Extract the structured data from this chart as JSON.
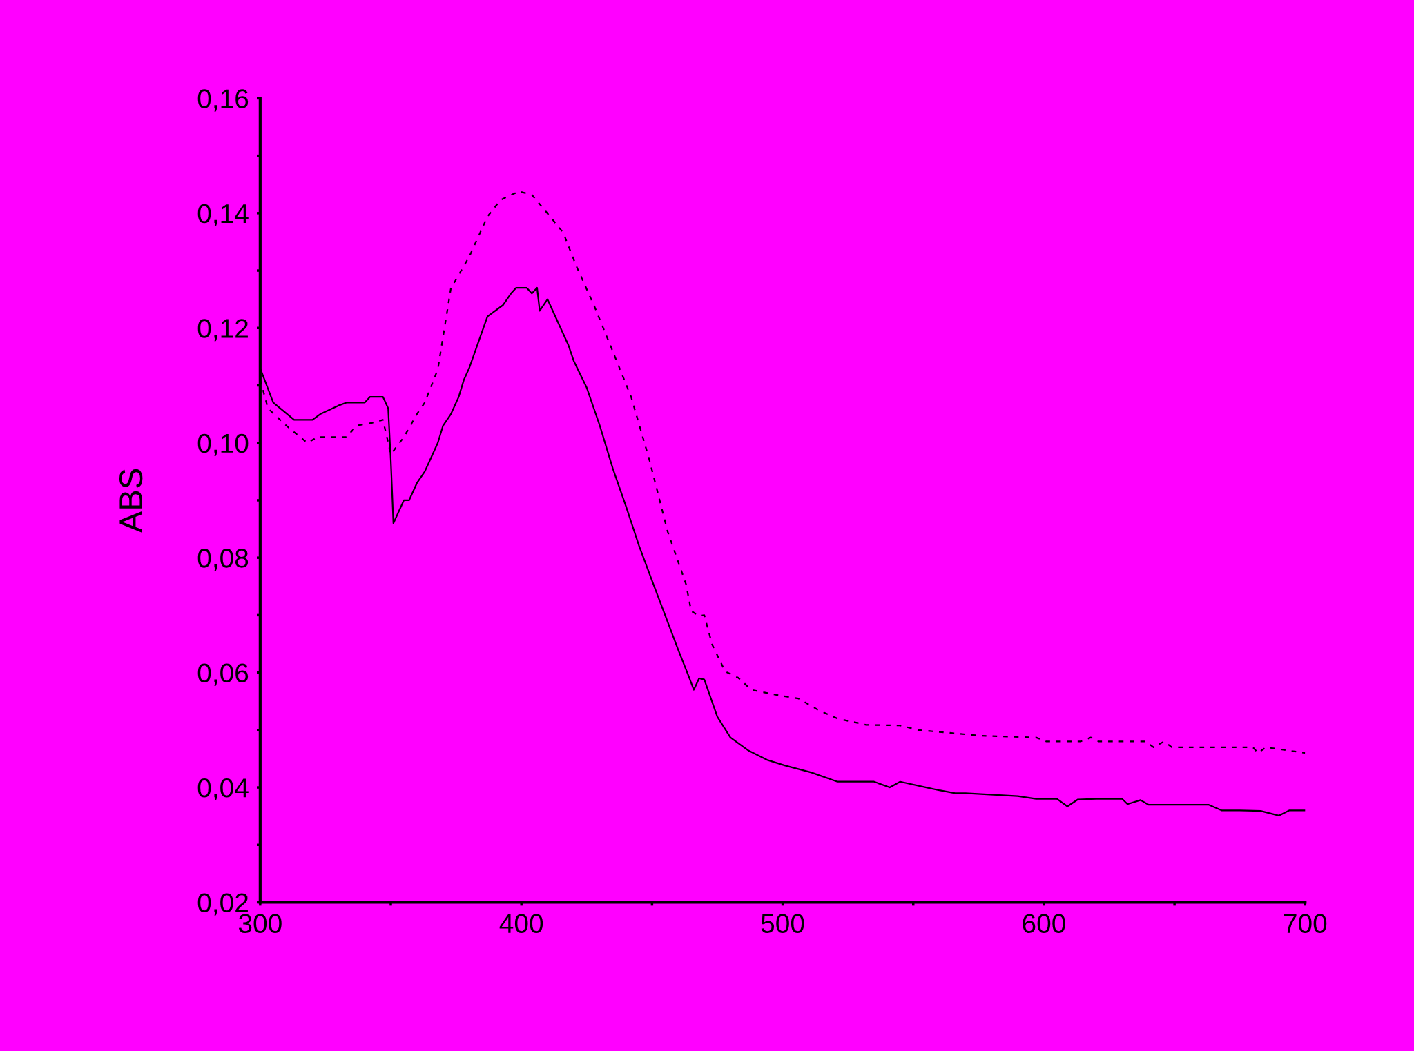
{
  "chart_data": {
    "type": "line",
    "ylabel": "ABS",
    "xlim": [
      300,
      700
    ],
    "ylim": [
      0.02,
      0.16
    ],
    "xticks": [
      300,
      {
        "value": 350,
        "label": null
      },
      400,
      {
        "value": 450,
        "label": null
      },
      500,
      {
        "value": 550,
        "label": null
      },
      600,
      {
        "value": 650,
        "label": null
      },
      700
    ],
    "yticks": [
      {
        "value": 0.02,
        "label": "0,02"
      },
      {
        "value": 0.03,
        "label": null
      },
      {
        "value": 0.04,
        "label": "0,04"
      },
      {
        "value": 0.05,
        "label": null
      },
      {
        "value": 0.06,
        "label": "0,06"
      },
      {
        "value": 0.07,
        "label": null
      },
      {
        "value": 0.08,
        "label": "0,08"
      },
      {
        "value": 0.09,
        "label": null
      },
      {
        "value": 0.1,
        "label": "0,10"
      },
      {
        "value": 0.11,
        "label": null
      },
      {
        "value": 0.12,
        "label": "0,12"
      },
      {
        "value": 0.13,
        "label": null
      },
      {
        "value": 0.14,
        "label": "0,14"
      },
      {
        "value": 0.15,
        "label": null
      },
      {
        "value": 0.16,
        "label": "0,16"
      }
    ],
    "grid": false,
    "marker": "none",
    "series": [
      {
        "color": "#000000",
        "line_style": "solid",
        "x": [
          300,
          305,
          313,
          320,
          323,
          330,
          333,
          340,
          342,
          347,
          349,
          350,
          351,
          355,
          357,
          360,
          363,
          365,
          368,
          370,
          373,
          376,
          378,
          380,
          387,
          393,
          396,
          398,
          402,
          404,
          406,
          407,
          410,
          414,
          418,
          420,
          425,
          430,
          435,
          440,
          445,
          450,
          456,
          460,
          464,
          466,
          468,
          470,
          475,
          480,
          487,
          494,
          501,
          511,
          521,
          535,
          541,
          545,
          555,
          560,
          566,
          570,
          590,
          597,
          605,
          609,
          613,
          620,
          630,
          632,
          637,
          640,
          649,
          663,
          668,
          675,
          683,
          690,
          694,
          700
        ],
        "values": [
          0.113,
          0.107,
          0.104,
          0.104,
          0.105,
          0.1065,
          0.107,
          0.107,
          0.108,
          0.108,
          0.106,
          0.097,
          0.086,
          0.09,
          0.09,
          0.093,
          0.095,
          0.097,
          0.1,
          0.103,
          0.105,
          0.108,
          0.111,
          0.113,
          0.122,
          0.124,
          0.126,
          0.127,
          0.127,
          0.126,
          0.127,
          0.123,
          0.125,
          0.121,
          0.117,
          0.1143,
          0.1096,
          0.103,
          0.0955,
          0.089,
          0.0821,
          0.076,
          0.0688,
          0.064,
          0.0594,
          0.057,
          0.059,
          0.0588,
          0.0523,
          0.0487,
          0.0464,
          0.0448,
          0.0438,
          0.0426,
          0.041,
          0.041,
          0.04,
          0.041,
          0.04,
          0.0395,
          0.039,
          0.039,
          0.0385,
          0.038,
          0.038,
          0.0367,
          0.0379,
          0.038,
          0.038,
          0.0371,
          0.0378,
          0.037,
          0.037,
          0.037,
          0.036,
          0.036,
          0.0359,
          0.0351,
          0.036,
          0.036
        ]
      },
      {
        "color": "#000000",
        "line_style": "dashed",
        "x": [
          300,
          303,
          310,
          318,
          322,
          333,
          337,
          343,
          347,
          350,
          355,
          360,
          363,
          368,
          373,
          380,
          387,
          392,
          399,
          404,
          411,
          416,
          421,
          428,
          435,
          442,
          449,
          456,
          463,
          465,
          468,
          470,
          473,
          478,
          483,
          488,
          499,
          506,
          514,
          521,
          532,
          545,
          552,
          576,
          597,
          601,
          614,
          618,
          621,
          639,
          642,
          646,
          649,
          663,
          680,
          682,
          685,
          700
        ],
        "values": [
          0.111,
          0.106,
          0.103,
          0.1,
          0.101,
          0.101,
          0.103,
          0.1035,
          0.104,
          0.098,
          0.101,
          0.105,
          0.107,
          0.1128,
          0.1269,
          0.1324,
          0.1394,
          0.1423,
          0.1438,
          0.1432,
          0.1394,
          0.1366,
          0.1308,
          0.1237,
          0.1159,
          0.108,
          0.097,
          0.0845,
          0.0754,
          0.0707,
          0.0699,
          0.07,
          0.0649,
          0.0602,
          0.0591,
          0.057,
          0.056,
          0.0555,
          0.0534,
          0.052,
          0.0509,
          0.0508,
          0.05,
          0.049,
          0.0487,
          0.048,
          0.048,
          0.0487,
          0.048,
          0.048,
          0.047,
          0.048,
          0.047,
          0.047,
          0.047,
          0.046,
          0.047,
          0.046
        ]
      }
    ]
  }
}
